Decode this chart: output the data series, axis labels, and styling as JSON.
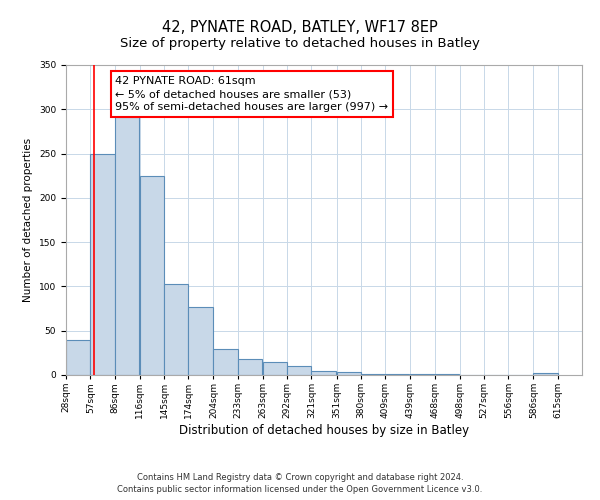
{
  "title": "42, PYNATE ROAD, BATLEY, WF17 8EP",
  "subtitle": "Size of property relative to detached houses in Batley",
  "xlabel": "Distribution of detached houses by size in Batley",
  "ylabel": "Number of detached properties",
  "bar_left_edges": [
    28,
    57,
    86,
    116,
    145,
    174,
    204,
    233,
    263,
    292,
    321,
    351,
    380,
    409,
    439,
    468,
    498,
    527,
    556,
    586
  ],
  "bar_heights": [
    39,
    250,
    291,
    225,
    103,
    77,
    29,
    18,
    15,
    10,
    5,
    3,
    1,
    1,
    1,
    1,
    0,
    0,
    0,
    2
  ],
  "bin_width": 29,
  "bar_color": "#c8d8e8",
  "bar_edge_color": "#5b8db8",
  "grid_color": "#c8d8e8",
  "red_line_x": 61,
  "annotation_line1": "42 PYNATE ROAD: 61sqm",
  "annotation_line2": "← 5% of detached houses are smaller (53)",
  "annotation_line3": "95% of semi-detached houses are larger (997) →",
  "ylim_max": 350,
  "yticks": [
    0,
    50,
    100,
    150,
    200,
    250,
    300,
    350
  ],
  "xtick_labels": [
    "28sqm",
    "57sqm",
    "86sqm",
    "116sqm",
    "145sqm",
    "174sqm",
    "204sqm",
    "233sqm",
    "263sqm",
    "292sqm",
    "321sqm",
    "351sqm",
    "380sqm",
    "409sqm",
    "439sqm",
    "468sqm",
    "498sqm",
    "527sqm",
    "556sqm",
    "586sqm",
    "615sqm"
  ],
  "footnote1": "Contains HM Land Registry data © Crown copyright and database right 2024.",
  "footnote2": "Contains public sector information licensed under the Open Government Licence v3.0.",
  "background_color": "#ffffff",
  "fig_width": 6.0,
  "fig_height": 5.0,
  "title_fontsize": 10.5,
  "subtitle_fontsize": 9.5,
  "xlabel_fontsize": 8.5,
  "ylabel_fontsize": 7.5,
  "tick_fontsize": 6.5,
  "annotation_fontsize": 8,
  "footnote_fontsize": 6
}
